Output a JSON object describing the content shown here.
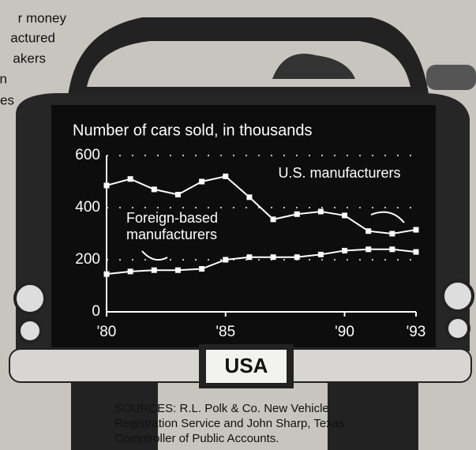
{
  "chart_data": {
    "type": "line",
    "title": "Number of cars sold, in thousands",
    "x": [
      1980,
      1981,
      1982,
      1983,
      1984,
      1985,
      1986,
      1987,
      1988,
      1989,
      1990,
      1991,
      1992,
      1993
    ],
    "series": [
      {
        "name": "U.S. manufacturers",
        "color": "#ffffff",
        "values": [
          485,
          510,
          470,
          450,
          500,
          520,
          440,
          355,
          375,
          385,
          370,
          310,
          300,
          315
        ]
      },
      {
        "name": "Foreign-based manufacturers",
        "color": "#ffffff",
        "values": [
          145,
          155,
          160,
          160,
          165,
          200,
          210,
          210,
          210,
          220,
          235,
          240,
          240,
          230
        ]
      }
    ],
    "xlim": [
      1980,
      1993
    ],
    "xticks": [
      {
        "value": 1980,
        "label": "'80"
      },
      {
        "value": 1985,
        "label": "'85"
      },
      {
        "value": 1990,
        "label": "'90"
      },
      {
        "value": 1993,
        "label": "'93"
      }
    ],
    "ylim": [
      0,
      600
    ],
    "yticks": [
      0,
      200,
      400,
      600
    ],
    "grid": true
  },
  "side_text": [
    "r money",
    "actured",
    "akers",
    "n",
    "es"
  ],
  "plate": "USA",
  "sources": "SOURCES: R.L. Polk & Co. New Vehicle Registration Service and John Sharp, Texas Comptroller of Public Accounts."
}
